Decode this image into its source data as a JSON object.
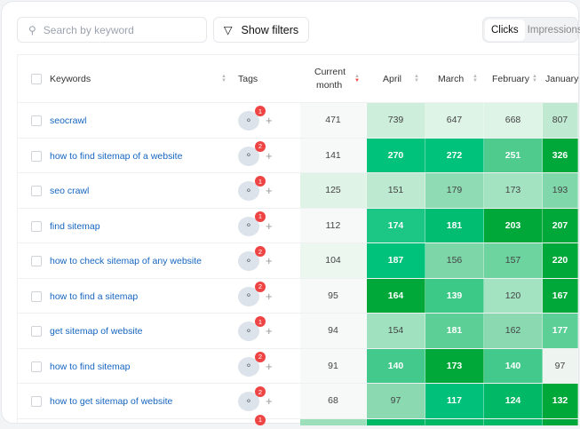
{
  "toolbar": {
    "search_placeholder": "Search by keyword",
    "show_filters": "Show filters",
    "toggle": [
      {
        "label": "Clicks",
        "active": true
      },
      {
        "label": "Impressions",
        "active": false
      }
    ]
  },
  "columns": {
    "keywords": "Keywords",
    "tags": "Tags",
    "current_month_1": "Current",
    "current_month_2": "month",
    "months": [
      "April",
      "March",
      "February",
      "January"
    ]
  },
  "rows": [
    {
      "keyword": "seocrawl",
      "tags": "1",
      "current": "471",
      "current_color": "#f7f9f8",
      "cells": [
        [
          "739",
          "#cdeedb",
          0
        ],
        [
          "647",
          "#ddf4e7",
          0
        ],
        [
          "668",
          "#ddf4e7",
          0
        ],
        [
          "807",
          "#bfe9d1",
          0
        ]
      ]
    },
    {
      "keyword": "how to find sitemap of a website",
      "tags": "2",
      "current": "141",
      "current_color": "#f7f9f8",
      "cells": [
        [
          "270",
          "#00c27a",
          1
        ],
        [
          "272",
          "#00c27a",
          1
        ],
        [
          "251",
          "#4fcb8e",
          1
        ],
        [
          "326",
          "#00a83a",
          1
        ]
      ]
    },
    {
      "keyword": "seo crawl",
      "tags": "1",
      "current": "125",
      "current_color": "#dff3e7",
      "cells": [
        [
          "151",
          "#bde9d0",
          0
        ],
        [
          "179",
          "#8fdcb4",
          0
        ],
        [
          "173",
          "#a3e3c1",
          0
        ],
        [
          "193",
          "#80d7aa",
          0
        ]
      ]
    },
    {
      "keyword": "find sitemap",
      "tags": "1",
      "current": "112",
      "current_color": "#f7f9f8",
      "cells": [
        [
          "174",
          "#1cc684",
          1
        ],
        [
          "181",
          "#00bd72",
          1
        ],
        [
          "203",
          "#00a83a",
          1
        ],
        [
          "207",
          "#00a83a",
          1
        ]
      ]
    },
    {
      "keyword": "how to check sitemap of any website",
      "tags": "2",
      "current": "104",
      "current_color": "#ebf7ef",
      "cells": [
        [
          "187",
          "#00c27a",
          1
        ],
        [
          "156",
          "#7cd6a7",
          0
        ],
        [
          "157",
          "#6dd39f",
          0
        ],
        [
          "220",
          "#00a83a",
          1
        ]
      ]
    },
    {
      "keyword": "how to find a sitemap",
      "tags": "2",
      "current": "95",
      "current_color": "#f7f9f8",
      "cells": [
        [
          "164",
          "#00a83a",
          1
        ],
        [
          "139",
          "#3cc886",
          1
        ],
        [
          "120",
          "#a3e3c1",
          0
        ],
        [
          "167",
          "#00a83a",
          1
        ]
      ]
    },
    {
      "keyword": "get sitemap of website",
      "tags": "1",
      "current": "94",
      "current_color": "#f7f9f8",
      "cells": [
        [
          "154",
          "#a0e2bf",
          0
        ],
        [
          "181",
          "#5ccf96",
          1
        ],
        [
          "162",
          "#8ad9b1",
          0
        ],
        [
          "177",
          "#5ccf96",
          1
        ]
      ]
    },
    {
      "keyword": "how to find sitemap",
      "tags": "2",
      "current": "91",
      "current_color": "#f7f9f8",
      "cells": [
        [
          "140",
          "#44c98c",
          1
        ],
        [
          "173",
          "#00a83a",
          1
        ],
        [
          "140",
          "#44c98c",
          1
        ],
        [
          "97",
          "#eef5f0",
          0
        ]
      ]
    },
    {
      "keyword": "how to get sitemap of website",
      "tags": "2",
      "current": "68",
      "current_color": "#f7f9f8",
      "cells": [
        [
          "97",
          "#8ad9b1",
          0
        ],
        [
          "117",
          "#00c07a",
          1
        ],
        [
          "124",
          "#00b865",
          1
        ],
        [
          "132",
          "#00a83a",
          1
        ]
      ]
    }
  ],
  "partial_row": {
    "tags": "1",
    "current_color": "#9be0bb",
    "cells": [
      "#00b865",
      "#00b865",
      "#00b865",
      "#00a83a"
    ]
  }
}
